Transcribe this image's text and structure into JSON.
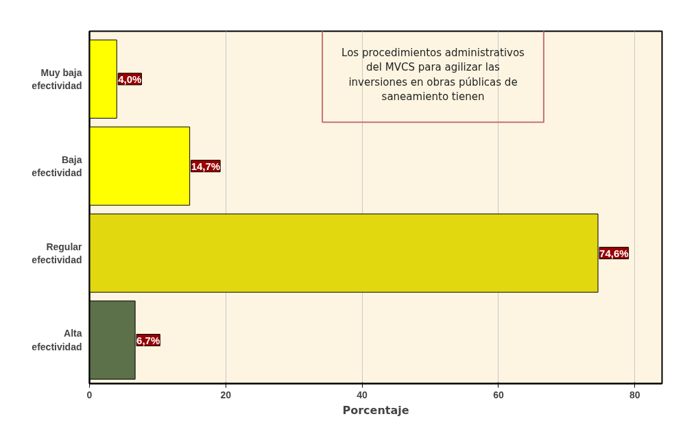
{
  "chart_data": {
    "type": "bar",
    "orientation": "horizontal",
    "xlabel": "Porcentaje",
    "annotations": [
      "Los procedimientos administrativos\ndel MVCS para agilizar las\ninversiones en obras públicas de\nsaneamiento tienen"
    ],
    "categories": [
      "Muy baja\nefectividad",
      "Baja\nefectividad",
      "Regular\nefectividad",
      "Alta\nefectividad"
    ],
    "values": [
      4.0,
      14.7,
      74.6,
      6.7
    ],
    "colors": [
      "#ffff00",
      "#ffff00",
      "#e2d810",
      "#5c714a"
    ],
    "value_labels": [
      "4,0%",
      "14,7%",
      "74,6%",
      "6,7%"
    ],
    "xlim": [
      0,
      84
    ],
    "xticks": [
      0,
      20,
      40,
      60,
      80
    ],
    "grid": "x"
  }
}
